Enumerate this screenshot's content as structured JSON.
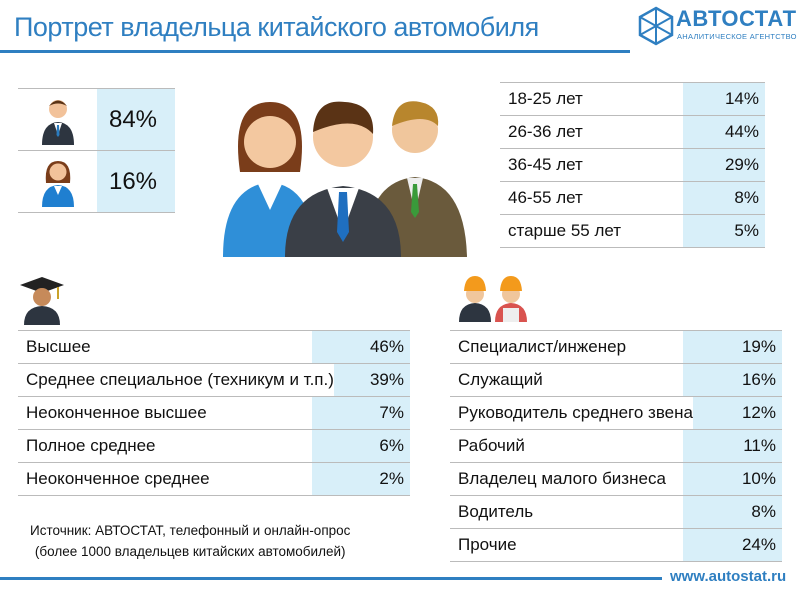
{
  "header": {
    "title": "Портрет владельца китайского автомобиля"
  },
  "logo": {
    "name": "АВТОСТАТ",
    "tagline": "АНАЛИТИЧЕСКОЕ АГЕНТСТВО"
  },
  "gender": {
    "rows": [
      "84%",
      "16%"
    ]
  },
  "age": {
    "rows": [
      [
        "18-25 лет",
        "14%"
      ],
      [
        "26-36 лет",
        "44%"
      ],
      [
        "36-45 лет",
        "29%"
      ],
      [
        "46-55 лет",
        "8%"
      ],
      [
        "старше 55 лет",
        "5%"
      ]
    ]
  },
  "education": {
    "rows": [
      [
        "Высшее",
        "46%"
      ],
      [
        "Среднее специальное (техникум и т.п.)",
        "39%"
      ],
      [
        "Неоконченное высшее",
        "7%"
      ],
      [
        "Полное среднее",
        "6%"
      ],
      [
        "Неоконченное среднее",
        "2%"
      ]
    ]
  },
  "occupation": {
    "rows": [
      [
        "Специалист/инженер",
        "19%"
      ],
      [
        "Служащий",
        "16%"
      ],
      [
        "Руководитель среднего звена",
        "12%"
      ],
      [
        "Рабочий",
        "11%"
      ],
      [
        "Владелец малого бизнеса",
        "10%"
      ],
      [
        "Водитель",
        "8%"
      ],
      [
        "Прочие",
        "24%"
      ]
    ]
  },
  "source": [
    "Источник: АВТОСТАТ, телефонный и онлайн-опрос",
    "(более 1000 владельцев китайских автомобилей)"
  ],
  "footer": {
    "url": "www.autostat.ru"
  }
}
